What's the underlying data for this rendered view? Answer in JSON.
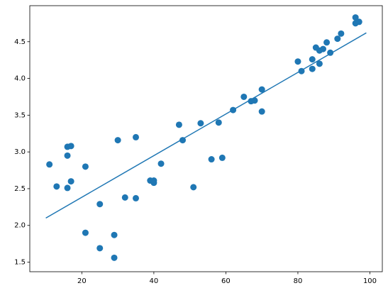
{
  "chart_data": {
    "type": "scatter",
    "color": "#1f77b4",
    "x": [
      11,
      13,
      16,
      17,
      16,
      16,
      17,
      21,
      21,
      25,
      25,
      29,
      29,
      30,
      32,
      35,
      35,
      39,
      40,
      40,
      42,
      47,
      48,
      51,
      53,
      56,
      58,
      59,
      62,
      65,
      67,
      68,
      70,
      70,
      80,
      81,
      84,
      84,
      85,
      86,
      86,
      87,
      88,
      89,
      91,
      92,
      96,
      96,
      97
    ],
    "values": [
      2.83,
      2.53,
      3.07,
      3.08,
      2.95,
      2.51,
      2.6,
      2.8,
      1.9,
      2.29,
      1.69,
      1.87,
      1.56,
      3.16,
      2.38,
      3.2,
      2.37,
      2.61,
      2.61,
      2.58,
      2.84,
      3.37,
      3.16,
      2.52,
      3.39,
      2.9,
      3.4,
      2.92,
      3.57,
      3.75,
      3.69,
      3.7,
      3.85,
      3.55,
      4.23,
      4.1,
      4.26,
      4.13,
      4.42,
      4.38,
      4.2,
      4.4,
      4.49,
      4.35,
      4.54,
      4.61,
      4.83,
      4.75,
      4.77
    ],
    "fit": {
      "x": [
        10,
        99
      ],
      "values": [
        2.1,
        4.62
      ]
    },
    "xlim": [
      5.55,
      103.45
    ],
    "ylim": [
      1.37,
      4.99
    ],
    "xticks": [
      20,
      40,
      60,
      80,
      100
    ],
    "yticks": [
      1.5,
      {
        "value": 2,
        "label": "2.0"
      },
      2.5,
      {
        "value": 3,
        "label": "3.0"
      },
      3.5,
      {
        "value": 4,
        "label": "4.0"
      },
      4.5
    ]
  }
}
